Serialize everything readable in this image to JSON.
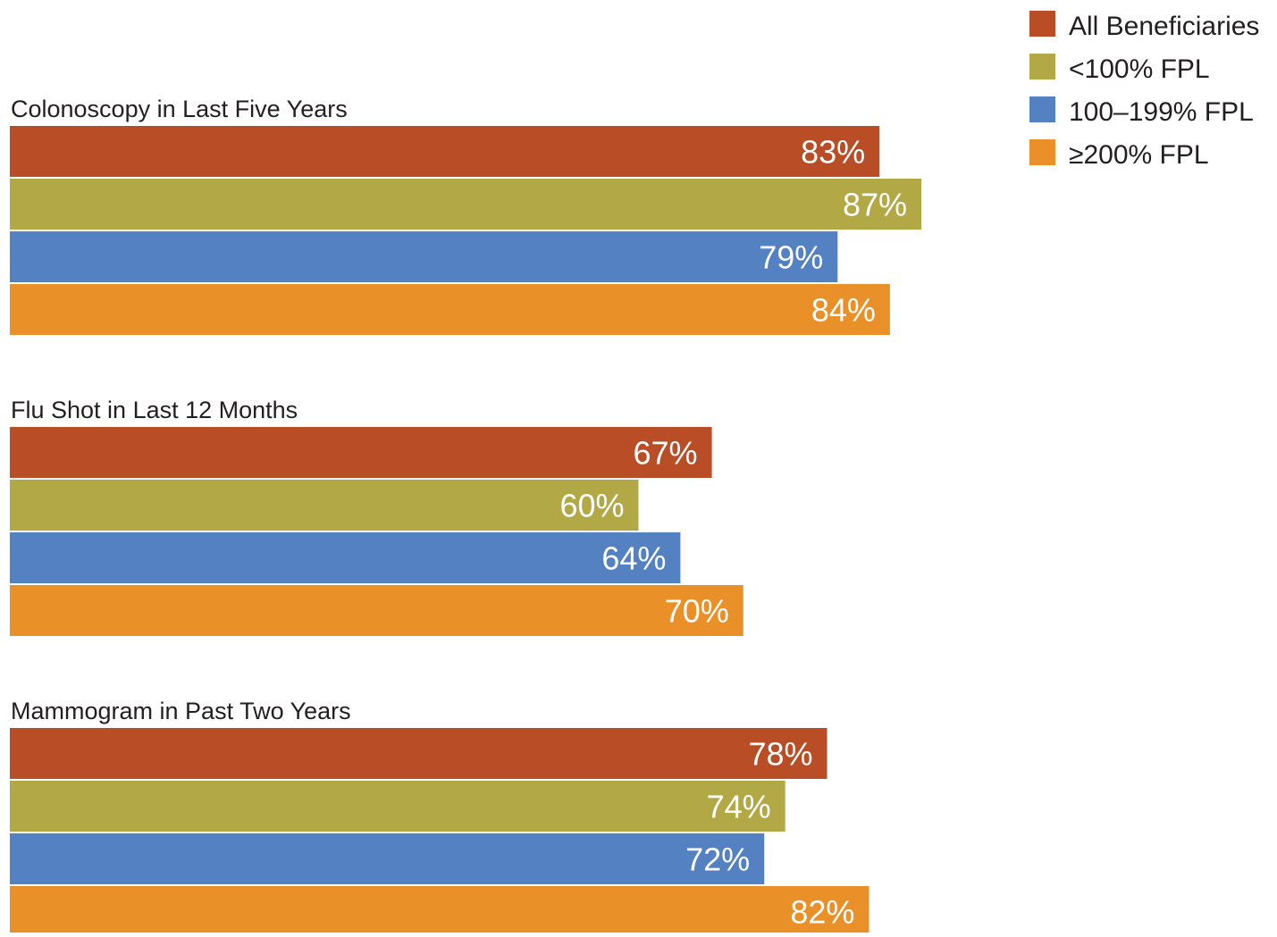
{
  "chart_data": {
    "type": "bar",
    "orientation": "horizontal",
    "groups": [
      "Colonoscopy in Last Five Years",
      "Flu Shot in Last 12 Months",
      "Mammogram in Past Two Years"
    ],
    "series": [
      {
        "name": "All Beneficiaries",
        "color": "#b84d26",
        "values": [
          83,
          67,
          78
        ],
        "labels": [
          "83%",
          "67%",
          "78%"
        ]
      },
      {
        "name": "<100% FPL",
        "color": "#b2a946",
        "values": [
          87,
          60,
          74
        ],
        "labels": [
          "87%",
          "60%",
          "74%"
        ]
      },
      {
        "name": "100–199% FPL",
        "color": "#5481c2",
        "values": [
          79,
          64,
          72
        ],
        "labels": [
          "79%",
          "64%",
          "72%"
        ]
      },
      {
        "name": "≥200% FPL",
        "color": "#e99028",
        "values": [
          84,
          70,
          82
        ],
        "labels": [
          "84%",
          "70%",
          "82%"
        ]
      }
    ],
    "xlim": [
      0,
      100
    ],
    "unit": "%",
    "grid": false,
    "legend_position": "top-right"
  }
}
